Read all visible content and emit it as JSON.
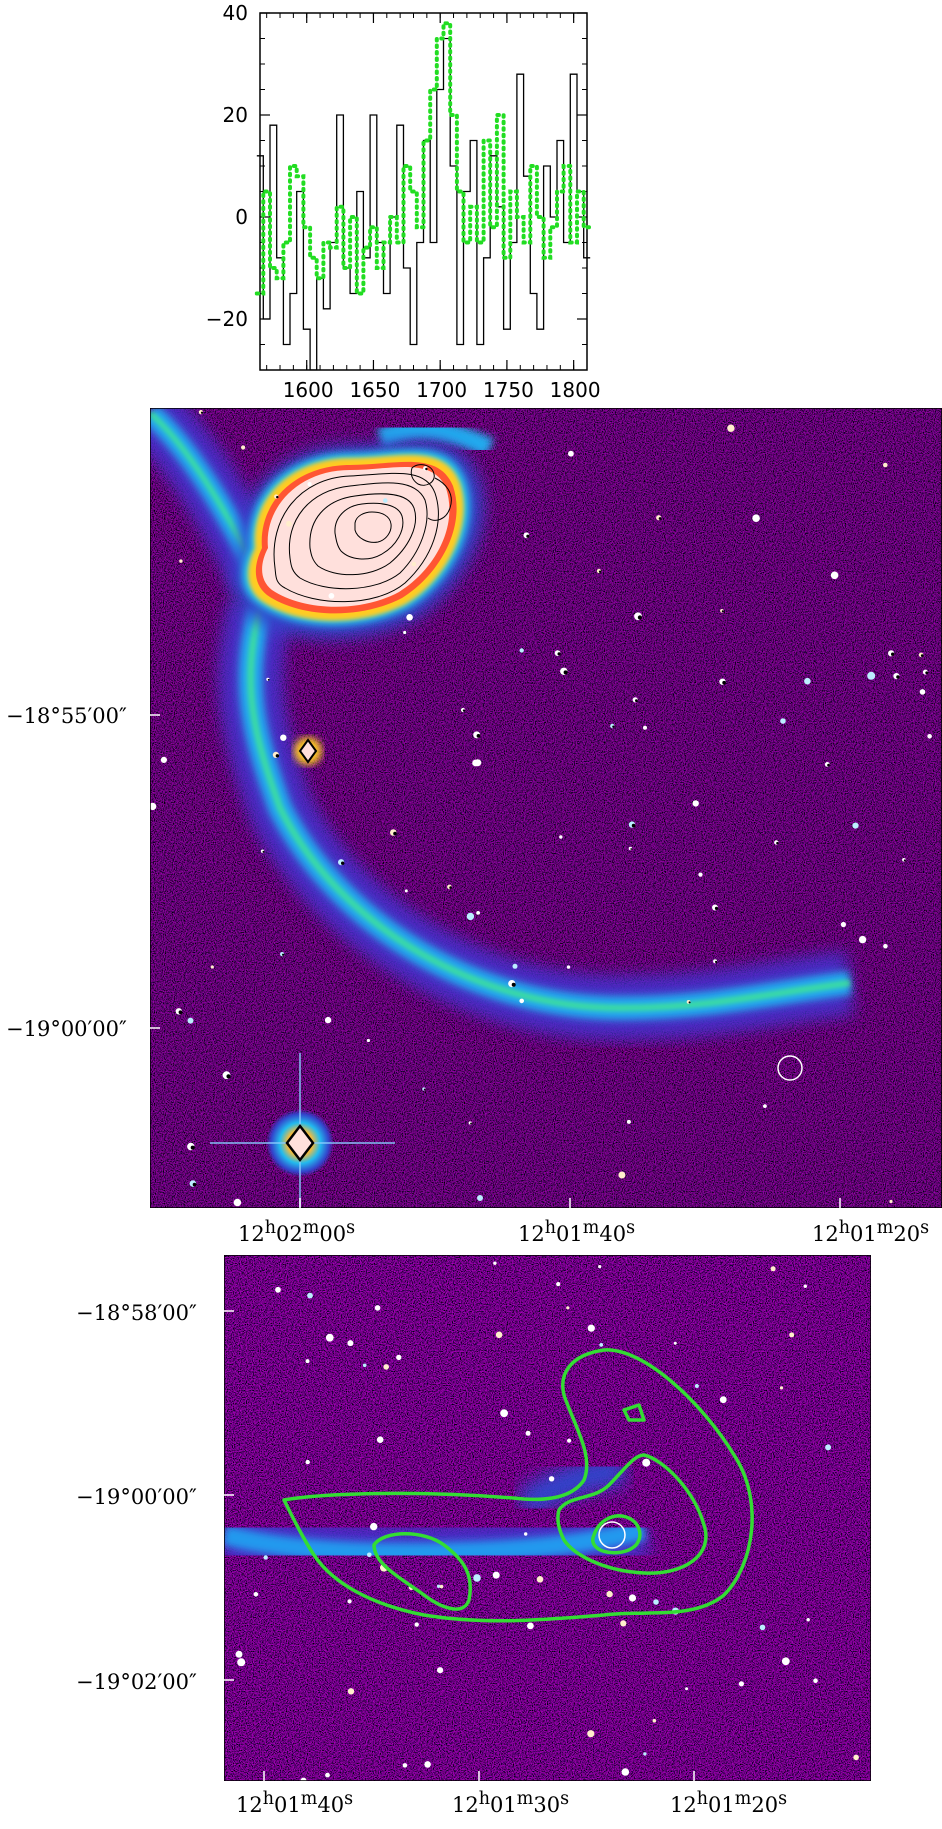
{
  "figure": {
    "spectrum": {
      "x_ticks": [
        "1600",
        "1650",
        "1700",
        "1750",
        "1800"
      ],
      "y_ticks": [
        "40",
        "20",
        "0",
        "−20"
      ],
      "line_colors": {
        "solid": "#000000",
        "dotted": "#22dd22"
      }
    },
    "optical_image": {
      "dec_labels": [
        "−18°55′00″",
        "−19°00′00″"
      ],
      "ra_labels": [
        {
          "h": "12",
          "m": "02",
          "s": "00"
        },
        {
          "h": "12",
          "m": "01",
          "s": "40"
        },
        {
          "h": "12",
          "m": "01",
          "s": "20"
        }
      ]
    },
    "zoom_image": {
      "dec_labels": [
        "−18°58′00″",
        "−19°00′00″",
        "−19°02′00″"
      ],
      "ra_labels": [
        {
          "h": "12",
          "m": "01",
          "s": "40"
        },
        {
          "h": "12",
          "m": "01",
          "s": "30"
        },
        {
          "h": "12",
          "m": "01",
          "s": "20"
        }
      ],
      "contour_color": "#33dd33"
    }
  },
  "chart_data": {
    "type": "line",
    "xlim": [
      1565,
      1810
    ],
    "ylim": [
      -30,
      40
    ],
    "x_ticks": [
      1600,
      1650,
      1700,
      1750,
      1800
    ],
    "y_ticks": [
      -20,
      0,
      20,
      40
    ],
    "series": [
      {
        "style": "solid",
        "color": "#000000",
        "x": [
          1565,
          1570,
          1575,
          1580,
          1585,
          1590,
          1595,
          1600,
          1605,
          1610,
          1615,
          1620,
          1625,
          1630,
          1635,
          1640,
          1645,
          1650,
          1655,
          1660,
          1665,
          1670,
          1675,
          1680,
          1685,
          1690,
          1695,
          1700,
          1705,
          1710,
          1715,
          1720,
          1725,
          1730,
          1735,
          1740,
          1745,
          1750,
          1755,
          1760,
          1765,
          1770,
          1775,
          1780,
          1785,
          1790,
          1795,
          1800,
          1805,
          1810
        ],
        "values": [
          12,
          -20,
          18,
          -8,
          -25,
          -15,
          5,
          -22,
          -30,
          -12,
          -18,
          -5,
          20,
          -10,
          -15,
          5,
          -8,
          20,
          -5,
          -15,
          0,
          18,
          -10,
          -25,
          -5,
          15,
          -5,
          25,
          35,
          10,
          -25,
          5,
          15,
          -25,
          -8,
          12,
          2,
          -22,
          -5,
          28,
          8,
          -15,
          -22,
          10,
          0,
          15,
          -5,
          28,
          5,
          -8
        ],
        "name": ""
      },
      {
        "style": "dotted",
        "color": "#22dd22",
        "x": [
          1565,
          1570,
          1575,
          1580,
          1585,
          1590,
          1595,
          1600,
          1605,
          1610,
          1615,
          1620,
          1625,
          1630,
          1635,
          1640,
          1645,
          1650,
          1655,
          1660,
          1665,
          1670,
          1675,
          1680,
          1685,
          1690,
          1695,
          1700,
          1705,
          1710,
          1715,
          1720,
          1725,
          1730,
          1735,
          1740,
          1745,
          1750,
          1755,
          1760,
          1765,
          1770,
          1775,
          1780,
          1785,
          1790,
          1795,
          1800,
          1805,
          1810
        ],
        "values": [
          -15,
          5,
          -10,
          -12,
          -5,
          10,
          8,
          -2,
          -8,
          -12,
          -5,
          -6,
          2,
          -10,
          0,
          -15,
          -6,
          -2,
          -10,
          -5,
          0,
          -5,
          10,
          5,
          -2,
          15,
          25,
          35,
          38,
          20,
          5,
          -5,
          2,
          -5,
          15,
          -2,
          20,
          -8,
          5,
          0,
          -5,
          10,
          0,
          -8,
          -2,
          5,
          10,
          -5,
          5,
          -2
        ],
        "name": ""
      }
    ]
  }
}
